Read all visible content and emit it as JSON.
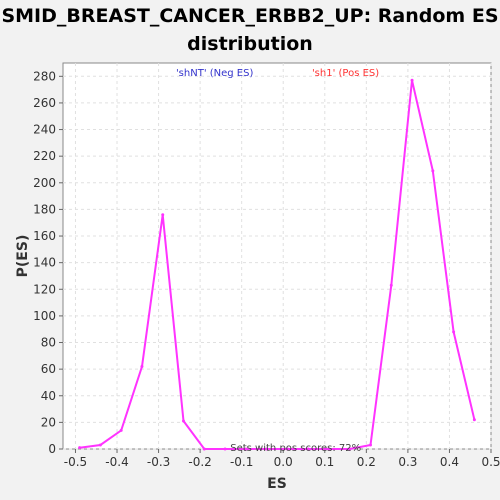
{
  "chart_data": {
    "type": "line",
    "title": "SMID_BREAST_CANCER_ERBB2_UP: Random ES distribution",
    "xlabel": "ES",
    "ylabel": "P(ES)",
    "xlim": [
      -0.53,
      0.5
    ],
    "ylim": [
      0,
      290
    ],
    "x_ticks": [
      -0.5,
      -0.4,
      -0.3,
      -0.2,
      -0.1,
      0.0,
      0.1,
      0.2,
      0.3,
      0.4,
      0.5
    ],
    "x_tick_labels": [
      "-0.5",
      "-0.4",
      "-0.3",
      "-0.2",
      "-0.1",
      "0.0",
      "0.1",
      "0.2",
      "0.3",
      "0.4",
      "0.5"
    ],
    "y_ticks": [
      0,
      20,
      40,
      60,
      80,
      100,
      120,
      140,
      160,
      180,
      200,
      220,
      240,
      260,
      280
    ],
    "grid": true,
    "series": [
      {
        "color": "#ff33ff",
        "x": [
          -0.49,
          -0.44,
          -0.39,
          -0.34,
          -0.29,
          -0.24,
          -0.19,
          -0.14,
          -0.09,
          -0.04,
          0.01,
          0.06,
          0.11,
          0.16,
          0.21,
          0.26,
          0.31,
          0.36,
          0.41,
          0.46
        ],
        "y": [
          1,
          3,
          14,
          62,
          176,
          21,
          0,
          0,
          0,
          0,
          0,
          0,
          0,
          0,
          3,
          123,
          277,
          209,
          88,
          22
        ]
      }
    ],
    "legend": [
      {
        "label": "'shNT' (Neg ES)",
        "color": "#3333cc",
        "x": -0.165
      },
      {
        "label": "'sh1' (Pos ES)",
        "color": "#ff3333",
        "x": 0.15
      }
    ],
    "annotation": {
      "text": "Sets with pos scores: 72%",
      "x": 0.03
    }
  }
}
